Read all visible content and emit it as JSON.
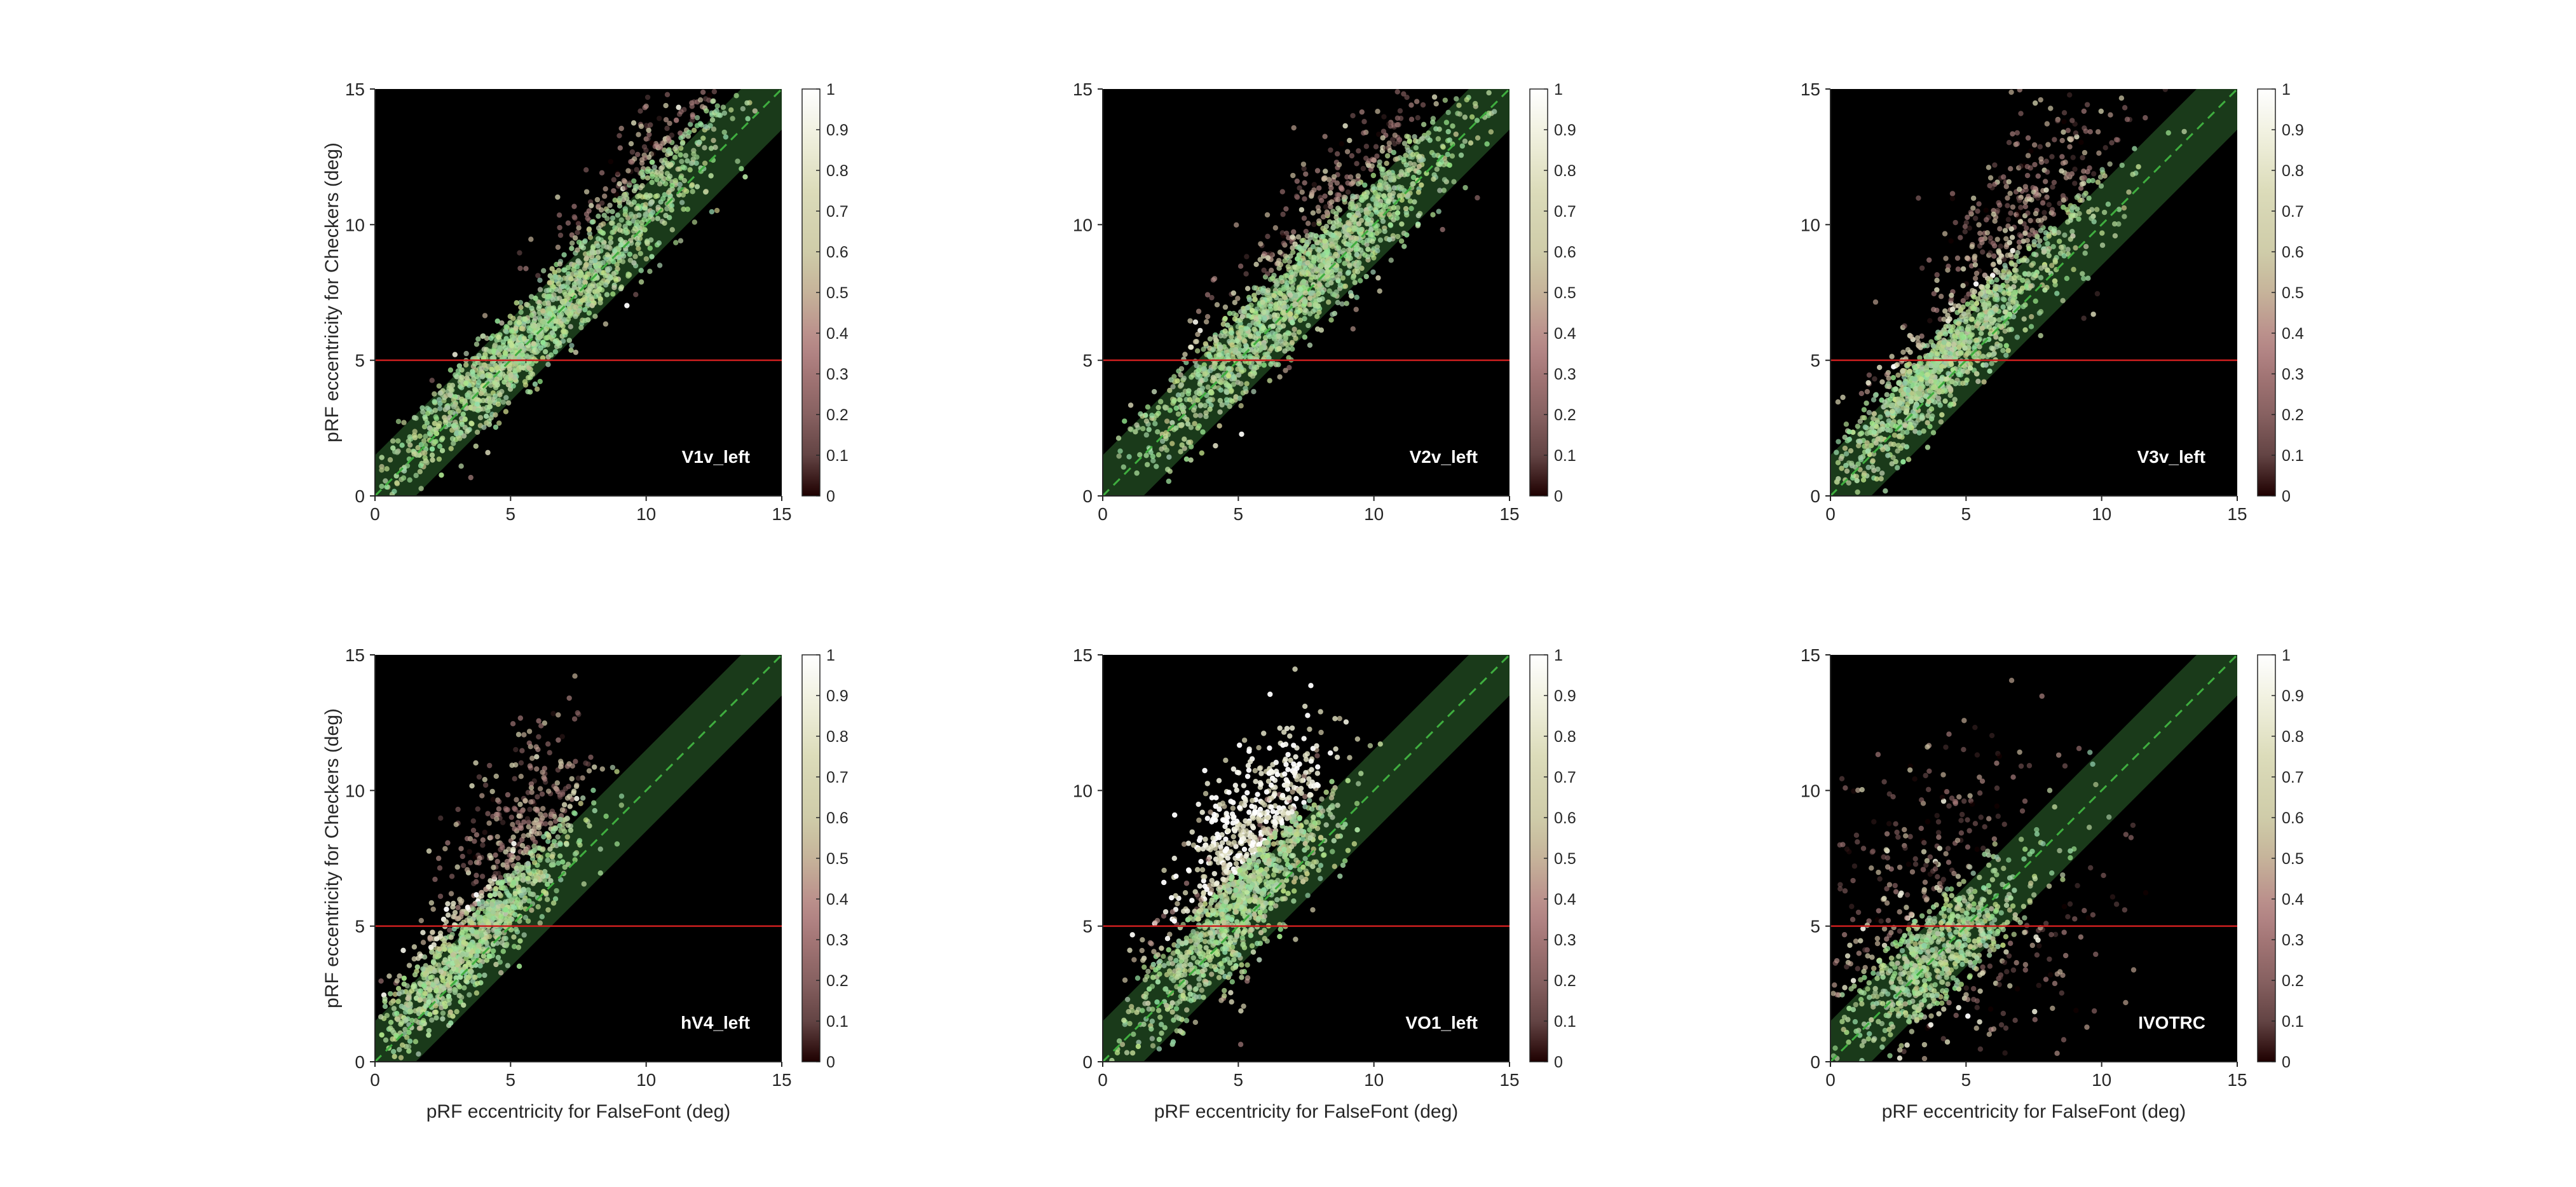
{
  "figure": {
    "xlabel": "pRF eccentricity for FalseFont (deg)",
    "ylabel": "pRF eccentricity for Checkers (deg)"
  },
  "style": {
    "background": "#000000",
    "band_color": "#1a3a1a",
    "diagonal_color": "#3fae3f",
    "threshold_color": "#cc1f1f"
  },
  "colorbar": {
    "colormap": "pink",
    "ticks": [
      "0",
      "0.1",
      "0.2",
      "0.3",
      "0.4",
      "0.5",
      "0.6",
      "0.7",
      "0.8",
      "0.9",
      "1"
    ],
    "range": [
      0,
      1
    ]
  },
  "chart_data": [
    {
      "type": "scatter",
      "label": "V1v_left",
      "xlim": [
        0,
        15
      ],
      "ylim": [
        0,
        15
      ],
      "xticks": [
        0,
        5,
        10,
        15
      ],
      "yticks": [
        0,
        5,
        10,
        15
      ],
      "threshold_y": 5,
      "band_halfwidth": 1.5,
      "show_xlabel": false,
      "show_ylabel": true,
      "point_count": 1600,
      "x_range": [
        0.2,
        14.5
      ],
      "clusters": [
        {
          "x": 5.5,
          "y": 5.6,
          "sx": 2.6,
          "sy": 2.6,
          "corr": 0.95,
          "weight": 0.75,
          "value": 0.62
        },
        {
          "x": 10.0,
          "y": 11.5,
          "sx": 1.8,
          "sy": 2.0,
          "corr": 0.8,
          "weight": 0.25,
          "value": 0.35
        }
      ]
    },
    {
      "type": "scatter",
      "label": "V2v_left",
      "xlim": [
        0,
        15
      ],
      "ylim": [
        0,
        15
      ],
      "xticks": [
        0,
        5,
        10,
        15
      ],
      "yticks": [
        0,
        5,
        10,
        15
      ],
      "threshold_y": 5,
      "band_halfwidth": 1.5,
      "show_xlabel": false,
      "show_ylabel": false,
      "point_count": 1700,
      "x_range": [
        0.5,
        14.5
      ],
      "clusters": [
        {
          "x": 6.5,
          "y": 6.8,
          "sx": 2.8,
          "sy": 2.8,
          "corr": 0.94,
          "weight": 0.7,
          "value": 0.6
        },
        {
          "x": 9.5,
          "y": 11.0,
          "sx": 2.2,
          "sy": 2.2,
          "corr": 0.8,
          "weight": 0.3,
          "value": 0.35
        }
      ]
    },
    {
      "type": "scatter",
      "label": "V3v_left",
      "xlim": [
        0,
        15
      ],
      "ylim": [
        0,
        15
      ],
      "xticks": [
        0,
        5,
        10,
        15
      ],
      "yticks": [
        0,
        5,
        10,
        15
      ],
      "threshold_y": 5,
      "band_halfwidth": 1.5,
      "show_xlabel": false,
      "show_ylabel": false,
      "point_count": 1500,
      "x_range": [
        0.2,
        14.0
      ],
      "clusters": [
        {
          "x": 4.0,
          "y": 4.8,
          "sx": 2.0,
          "sy": 2.2,
          "corr": 0.9,
          "weight": 0.7,
          "value": 0.68
        },
        {
          "x": 7.5,
          "y": 10.5,
          "sx": 2.0,
          "sy": 2.4,
          "corr": 0.6,
          "weight": 0.3,
          "value": 0.35
        }
      ]
    },
    {
      "type": "scatter",
      "label": "hV4_left",
      "xlim": [
        0,
        15
      ],
      "ylim": [
        0,
        15
      ],
      "xticks": [
        0,
        5,
        10,
        15
      ],
      "yticks": [
        0,
        5,
        10,
        15
      ],
      "threshold_y": 5,
      "band_halfwidth": 1.5,
      "show_xlabel": true,
      "show_ylabel": true,
      "point_count": 1300,
      "x_range": [
        0.2,
        9.5
      ],
      "clusters": [
        {
          "x": 3.2,
          "y": 4.0,
          "sx": 1.7,
          "sy": 2.0,
          "corr": 0.88,
          "weight": 0.7,
          "value": 0.7
        },
        {
          "x": 5.5,
          "y": 8.5,
          "sx": 1.4,
          "sy": 1.9,
          "corr": 0.5,
          "weight": 0.3,
          "value": 0.38
        }
      ]
    },
    {
      "type": "scatter",
      "label": "VO1_left",
      "xlim": [
        0,
        15
      ],
      "ylim": [
        0,
        15
      ],
      "xticks": [
        0,
        5,
        10,
        15
      ],
      "yticks": [
        0,
        5,
        10,
        15
      ],
      "threshold_y": 5,
      "band_halfwidth": 1.5,
      "show_xlabel": true,
      "show_ylabel": false,
      "point_count": 1500,
      "x_range": [
        0.3,
        10.5
      ],
      "clusters": [
        {
          "x": 5.5,
          "y": 8.0,
          "sx": 1.4,
          "sy": 2.0,
          "corr": 0.55,
          "weight": 0.5,
          "value": 0.9
        },
        {
          "x": 4.5,
          "y": 5.0,
          "sx": 2.0,
          "sy": 2.4,
          "corr": 0.85,
          "weight": 0.5,
          "value": 0.6
        }
      ]
    },
    {
      "type": "scatter",
      "label": "IVOTRC",
      "xlim": [
        0,
        15
      ],
      "ylim": [
        0,
        15
      ],
      "xticks": [
        0,
        5,
        10,
        15
      ],
      "yticks": [
        0,
        5,
        10,
        15
      ],
      "threshold_y": 5,
      "band_halfwidth": 1.5,
      "show_xlabel": true,
      "show_ylabel": false,
      "point_count": 1100,
      "x_range": [
        0.1,
        12.0
      ],
      "clusters": [
        {
          "x": 3.8,
          "y": 3.8,
          "sx": 1.5,
          "sy": 1.5,
          "corr": 0.6,
          "weight": 0.6,
          "value": 0.62
        },
        {
          "x": 4.5,
          "y": 6.0,
          "sx": 3.0,
          "sy": 3.2,
          "corr": 0.1,
          "weight": 0.4,
          "value": 0.25
        }
      ]
    }
  ]
}
